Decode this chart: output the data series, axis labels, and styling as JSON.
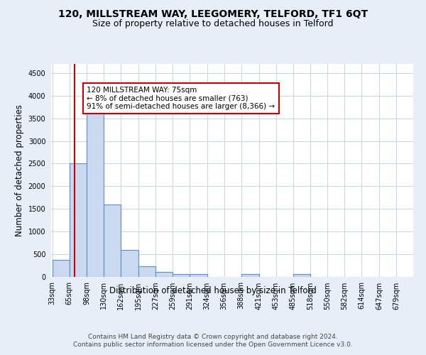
{
  "title": "120, MILLSTREAM WAY, LEEGOMERY, TELFORD, TF1 6QT",
  "subtitle": "Size of property relative to detached houses in Telford",
  "xlabel": "Distribution of detached houses by size in Telford",
  "ylabel": "Number of detached properties",
  "footer_line1": "Contains HM Land Registry data © Crown copyright and database right 2024.",
  "footer_line2": "Contains public sector information licensed under the Open Government Licence v3.0.",
  "bin_edges": [
    33,
    65,
    98,
    130,
    162,
    195,
    227,
    259,
    291,
    324,
    356,
    388,
    421,
    453,
    485,
    518,
    550,
    582,
    614,
    647,
    679
  ],
  "bar_heights": [
    375,
    2500,
    3700,
    1600,
    600,
    240,
    110,
    65,
    55,
    0,
    0,
    55,
    0,
    0,
    55,
    0,
    0,
    0,
    0,
    0
  ],
  "bar_color": "#c9d9f0",
  "bar_edge_color": "#5b8eca",
  "bar_edge_width": 0.8,
  "red_line_x": 75,
  "red_line_color": "#cc0000",
  "ylim": [
    0,
    4700
  ],
  "yticks": [
    0,
    500,
    1000,
    1500,
    2000,
    2500,
    3000,
    3500,
    4000,
    4500
  ],
  "bg_color": "#e8eef8",
  "plot_bg_color": "#ffffff",
  "annotation_text": "120 MILLSTREAM WAY: 75sqm\n← 8% of detached houses are smaller (763)\n91% of semi-detached houses are larger (8,366) →",
  "annotation_box_color": "#ffffff",
  "annotation_box_edge_color": "#cc0000",
  "title_fontsize": 10,
  "subtitle_fontsize": 9,
  "tick_label_fontsize": 7,
  "ylabel_fontsize": 8.5,
  "xlabel_fontsize": 8.5,
  "annotation_fontsize": 7.5,
  "footer_fontsize": 6.5
}
